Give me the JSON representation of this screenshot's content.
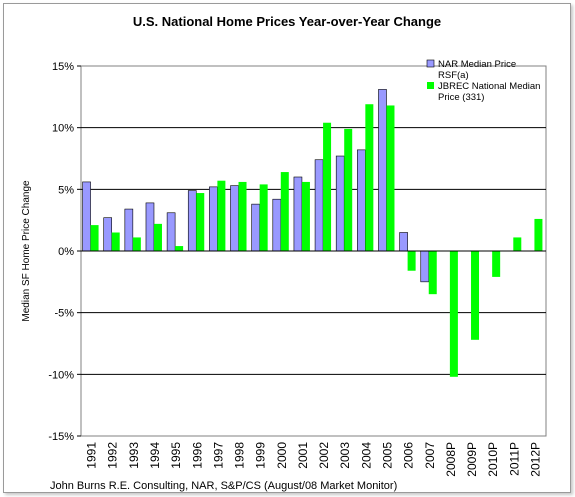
{
  "chart_data": {
    "type": "bar",
    "title": "U.S. National Home Prices Year-over-Year Change",
    "xlabel": "",
    "ylabel": "Median SF Home Price Change",
    "ylim": [
      -15,
      15
    ],
    "yticks": [
      15,
      10,
      5,
      0,
      -5,
      -10,
      -15
    ],
    "ytick_labels": [
      "15%",
      "10%",
      "5%",
      "0%",
      "-5%",
      "-10%",
      "-15%"
    ],
    "grid": true,
    "legend_position": "top-right",
    "categories": [
      "1991",
      "1992",
      "1993",
      "1994",
      "1995",
      "1996",
      "1997",
      "1998",
      "1999",
      "2000",
      "2001",
      "2002",
      "2003",
      "2004",
      "2005",
      "2006",
      "2007",
      "2008P",
      "2009P",
      "2010P",
      "2011P",
      "2012P"
    ],
    "series": [
      {
        "name": "NAR Median Price RSF(a)",
        "color": "#9999ff",
        "values": [
          5.6,
          2.7,
          3.4,
          3.9,
          3.1,
          4.9,
          5.2,
          5.3,
          3.8,
          4.2,
          6.0,
          7.4,
          7.7,
          8.2,
          13.1,
          1.5,
          -2.5,
          null,
          null,
          null,
          null,
          null
        ]
      },
      {
        "name": "JBREC National Median Price (331)",
        "color": "#00ff00",
        "values": [
          2.1,
          1.5,
          1.1,
          2.2,
          0.4,
          4.7,
          5.7,
          5.6,
          5.4,
          6.4,
          5.6,
          10.4,
          9.9,
          11.9,
          11.8,
          -1.6,
          -3.5,
          -10.2,
          -7.2,
          -2.1,
          1.1,
          2.6
        ]
      }
    ]
  },
  "source": "John Burns R.E. Consulting, NAR, S&P/CS (August/08 Market Monitor)"
}
